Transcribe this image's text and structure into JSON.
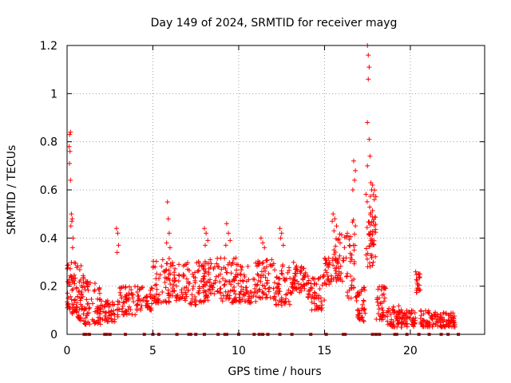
{
  "chart_data": {
    "type": "scatter",
    "title": "Day 149 of 2024, SRMTID for receiver mayg",
    "xlabel": "GPS time / hours",
    "ylabel": "SRMTID / TECUs",
    "xlim": [
      0,
      24.33
    ],
    "ylim": [
      0,
      1.2
    ],
    "xticks": [
      0,
      5,
      10,
      15,
      20
    ],
    "xtick_labels": [
      "0",
      "5",
      "10",
      "15",
      "20"
    ],
    "yticks": [
      0,
      0.2,
      0.4,
      0.6,
      0.8,
      1.0,
      1.2
    ],
    "ytick_labels": [
      "0",
      "0.2",
      "0.4",
      "0.6",
      "0.8",
      "1",
      "1.2"
    ],
    "grid": true,
    "marker": "+",
    "color": "#ff0000",
    "clusters": [
      {
        "x0": 0.0,
        "x1": 0.6,
        "ylow": 0.08,
        "yhigh": 0.3,
        "n": 60
      },
      {
        "x0": 0.6,
        "x1": 1.0,
        "ylow": 0.05,
        "yhigh": 0.3,
        "n": 40
      },
      {
        "x0": 1.0,
        "x1": 2.0,
        "ylow": 0.04,
        "yhigh": 0.22,
        "n": 70
      },
      {
        "x0": 2.0,
        "x1": 3.0,
        "ylow": 0.05,
        "yhigh": 0.14,
        "n": 50
      },
      {
        "x0": 3.0,
        "x1": 4.0,
        "ylow": 0.08,
        "yhigh": 0.2,
        "n": 50
      },
      {
        "x0": 4.0,
        "x1": 5.0,
        "ylow": 0.1,
        "yhigh": 0.2,
        "n": 50
      },
      {
        "x0": 5.0,
        "x1": 6.0,
        "ylow": 0.13,
        "yhigh": 0.32,
        "n": 60
      },
      {
        "x0": 6.0,
        "x1": 7.0,
        "ylow": 0.14,
        "yhigh": 0.3,
        "n": 55
      },
      {
        "x0": 7.0,
        "x1": 8.0,
        "ylow": 0.12,
        "yhigh": 0.32,
        "n": 60
      },
      {
        "x0": 8.0,
        "x1": 9.0,
        "ylow": 0.14,
        "yhigh": 0.32,
        "n": 60
      },
      {
        "x0": 9.0,
        "x1": 10.0,
        "ylow": 0.13,
        "yhigh": 0.32,
        "n": 60
      },
      {
        "x0": 10.0,
        "x1": 11.0,
        "ylow": 0.13,
        "yhigh": 0.3,
        "n": 55
      },
      {
        "x0": 11.0,
        "x1": 12.0,
        "ylow": 0.15,
        "yhigh": 0.32,
        "n": 55
      },
      {
        "x0": 12.0,
        "x1": 13.0,
        "ylow": 0.12,
        "yhigh": 0.3,
        "n": 55
      },
      {
        "x0": 13.0,
        "x1": 14.0,
        "ylow": 0.17,
        "yhigh": 0.3,
        "n": 60
      },
      {
        "x0": 14.0,
        "x1": 15.0,
        "ylow": 0.1,
        "yhigh": 0.25,
        "n": 55
      },
      {
        "x0": 15.0,
        "x1": 15.5,
        "ylow": 0.2,
        "yhigh": 0.32,
        "n": 30
      },
      {
        "x0": 15.5,
        "x1": 16.3,
        "ylow": 0.22,
        "yhigh": 0.42,
        "n": 45
      },
      {
        "x0": 16.3,
        "x1": 16.8,
        "ylow": 0.15,
        "yhigh": 0.5,
        "n": 35
      },
      {
        "x0": 16.8,
        "x1": 17.4,
        "ylow": 0.05,
        "yhigh": 0.2,
        "n": 40
      },
      {
        "x0": 17.4,
        "x1": 18.0,
        "ylow": 0.28,
        "yhigh": 0.6,
        "n": 55
      },
      {
        "x0": 18.0,
        "x1": 18.6,
        "ylow": 0.06,
        "yhigh": 0.2,
        "n": 40
      },
      {
        "x0": 18.6,
        "x1": 19.5,
        "ylow": 0.03,
        "yhigh": 0.12,
        "n": 55
      },
      {
        "x0": 19.5,
        "x1": 20.3,
        "ylow": 0.03,
        "yhigh": 0.1,
        "n": 45
      },
      {
        "x0": 20.3,
        "x1": 20.6,
        "ylow": 0.17,
        "yhigh": 0.26,
        "n": 20
      },
      {
        "x0": 20.6,
        "x1": 21.5,
        "ylow": 0.03,
        "yhigh": 0.1,
        "n": 50
      },
      {
        "x0": 21.5,
        "x1": 22.0,
        "ylow": 0.03,
        "yhigh": 0.09,
        "n": 30
      },
      {
        "x0": 22.0,
        "x1": 22.6,
        "ylow": 0.03,
        "yhigh": 0.1,
        "n": 40
      }
    ],
    "outliers": [
      [
        0.15,
        0.83
      ],
      [
        0.2,
        0.84
      ],
      [
        0.12,
        0.78
      ],
      [
        0.17,
        0.76
      ],
      [
        0.14,
        0.71
      ],
      [
        0.2,
        0.64
      ],
      [
        0.25,
        0.5
      ],
      [
        0.28,
        0.47
      ],
      [
        0.22,
        0.45
      ],
      [
        0.3,
        0.48
      ],
      [
        0.35,
        0.4
      ],
      [
        0.32,
        0.36
      ],
      [
        2.88,
        0.44
      ],
      [
        2.95,
        0.42
      ],
      [
        3.0,
        0.37
      ],
      [
        2.92,
        0.34
      ],
      [
        5.85,
        0.55
      ],
      [
        5.9,
        0.48
      ],
      [
        5.95,
        0.42
      ],
      [
        5.8,
        0.38
      ],
      [
        6.0,
        0.36
      ],
      [
        8.0,
        0.44
      ],
      [
        8.1,
        0.42
      ],
      [
        8.2,
        0.39
      ],
      [
        8.05,
        0.37
      ],
      [
        9.3,
        0.46
      ],
      [
        9.4,
        0.42
      ],
      [
        9.5,
        0.39
      ],
      [
        9.25,
        0.37
      ],
      [
        11.3,
        0.4
      ],
      [
        11.4,
        0.38
      ],
      [
        11.5,
        0.36
      ],
      [
        12.4,
        0.44
      ],
      [
        12.5,
        0.42
      ],
      [
        12.45,
        0.4
      ],
      [
        12.6,
        0.37
      ],
      [
        15.5,
        0.5
      ],
      [
        15.6,
        0.48
      ],
      [
        15.45,
        0.47
      ],
      [
        15.7,
        0.45
      ],
      [
        15.55,
        0.43
      ],
      [
        16.7,
        0.72
      ],
      [
        16.8,
        0.68
      ],
      [
        16.75,
        0.64
      ],
      [
        16.65,
        0.6
      ],
      [
        17.5,
        1.2
      ],
      [
        17.55,
        1.16
      ],
      [
        17.6,
        1.11
      ],
      [
        17.55,
        1.06
      ],
      [
        17.5,
        0.88
      ],
      [
        17.6,
        0.81
      ],
      [
        17.65,
        0.74
      ],
      [
        17.5,
        0.7
      ],
      [
        17.7,
        0.63
      ],
      [
        17.8,
        0.62
      ],
      [
        17.75,
        0.6
      ],
      [
        17.85,
        0.58
      ],
      [
        17.9,
        0.56
      ]
    ],
    "baseline_x": [
      1.0,
      1.1,
      1.3,
      2.2,
      2.3,
      2.5,
      3.4,
      4.5,
      5.0,
      5.35,
      6.4,
      7.1,
      7.2,
      7.5,
      8.0,
      8.8,
      9.2,
      9.3,
      10.0,
      10.9,
      11.2,
      11.4,
      11.7,
      12.4,
      13.1,
      14.2,
      15.1,
      16.1,
      16.2,
      17.8,
      18.0,
      18.2,
      19.1,
      19.2,
      19.8,
      20.5,
      21.1,
      21.8,
      22.2,
      22.8
    ]
  }
}
